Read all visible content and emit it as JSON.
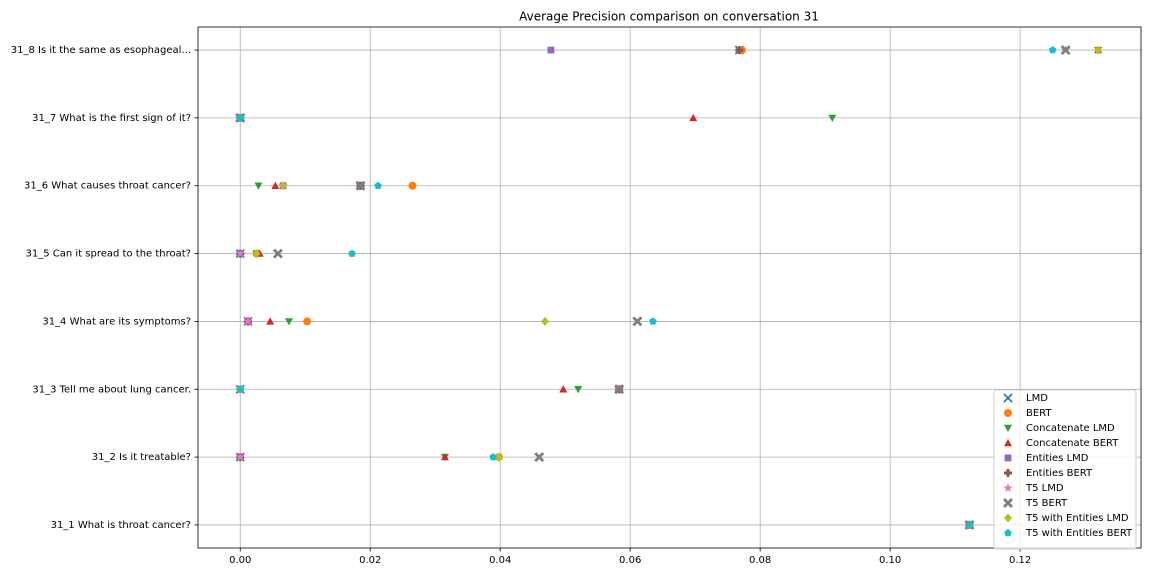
{
  "chart_data": {
    "type": "scatter",
    "title": "Average Precision comparison on conversation 31",
    "categories": [
      "31_1 What is throat cancer?",
      "31_2 Is it treatable?",
      "31_3 Tell me about lung cancer.",
      "31_4 What are its symptoms?",
      "31_5 Can it spread to the throat?",
      "31_6 What causes throat cancer?",
      "31_7 What is the first sign of it?",
      "31_8 Is it the same as esophageal..."
    ],
    "series": [
      {
        "name": "LMD",
        "color": "#1f77b4",
        "marker": "x",
        "values": [
          0.1122,
          0,
          0,
          0.0012,
          0,
          0.0185,
          0,
          0.0768
        ]
      },
      {
        "name": "BERT",
        "color": "#ff7f0e",
        "marker": "o",
        "values": [
          0.1122,
          0.0398,
          0,
          0.0103,
          0.0025,
          0.0265,
          0,
          0.0772
        ]
      },
      {
        "name": "Concatenate LMD",
        "color": "#2ca02c",
        "marker": "v",
        "values": [
          0.1122,
          0.0315,
          0.052,
          0.0075,
          0.0025,
          0.0028,
          0.0911,
          0.132
        ]
      },
      {
        "name": "Concatenate BERT",
        "color": "#d62728",
        "marker": "^",
        "values": [
          0.1122,
          0.0315,
          0.0497,
          0.0046,
          0.003,
          0.0054,
          0.0697,
          0.132
        ]
      },
      {
        "name": "Entities LMD",
        "color": "#9467bd",
        "marker": "s",
        "values": [
          0.1122,
          0,
          0.0583,
          0.0012,
          0,
          0.0066,
          0,
          0.0478
        ]
      },
      {
        "name": "Entities BERT",
        "color": "#8c564b",
        "marker": "P",
        "values": [
          0.1122,
          0,
          0.0583,
          0.0012,
          0,
          0.0185,
          0,
          0.0768
        ]
      },
      {
        "name": "T5 LMD",
        "color": "#e377c2",
        "marker": "*",
        "values": [
          0.1122,
          0,
          0.0583,
          0.0012,
          0,
          0.0066,
          0,
          0.127
        ]
      },
      {
        "name": "T5 BERT",
        "color": "#7f7f7f",
        "marker": "X",
        "values": [
          0.1122,
          0.046,
          0.0583,
          0.0611,
          0.0058,
          0.0185,
          0,
          0.127
        ]
      },
      {
        "name": "T5 with Entities LMD",
        "color": "#bcbd22",
        "marker": "D",
        "values": [
          0.1122,
          0.0398,
          0,
          0.0469,
          0.0025,
          0.0066,
          0,
          0.132
        ]
      },
      {
        "name": "T5 with Entities BERT",
        "color": "#17becf",
        "marker": "p",
        "values": [
          0.1122,
          0.0389,
          0,
          0.0635,
          0.0172,
          0.0212,
          0,
          0.125
        ]
      }
    ],
    "xlim": [
      -0.0065,
      0.1386
    ],
    "xticks": [
      {
        "value": 0,
        "label": "0.00"
      },
      {
        "value": 0.02,
        "label": "0.02"
      },
      {
        "value": 0.04,
        "label": "0.04"
      },
      {
        "value": 0.06,
        "label": "0.06"
      },
      {
        "value": 0.08,
        "label": "0.08"
      },
      {
        "value": 0.1,
        "label": "0.10"
      },
      {
        "value": 0.12,
        "label": "0.12"
      }
    ],
    "grid": true,
    "legend": "lower right"
  }
}
